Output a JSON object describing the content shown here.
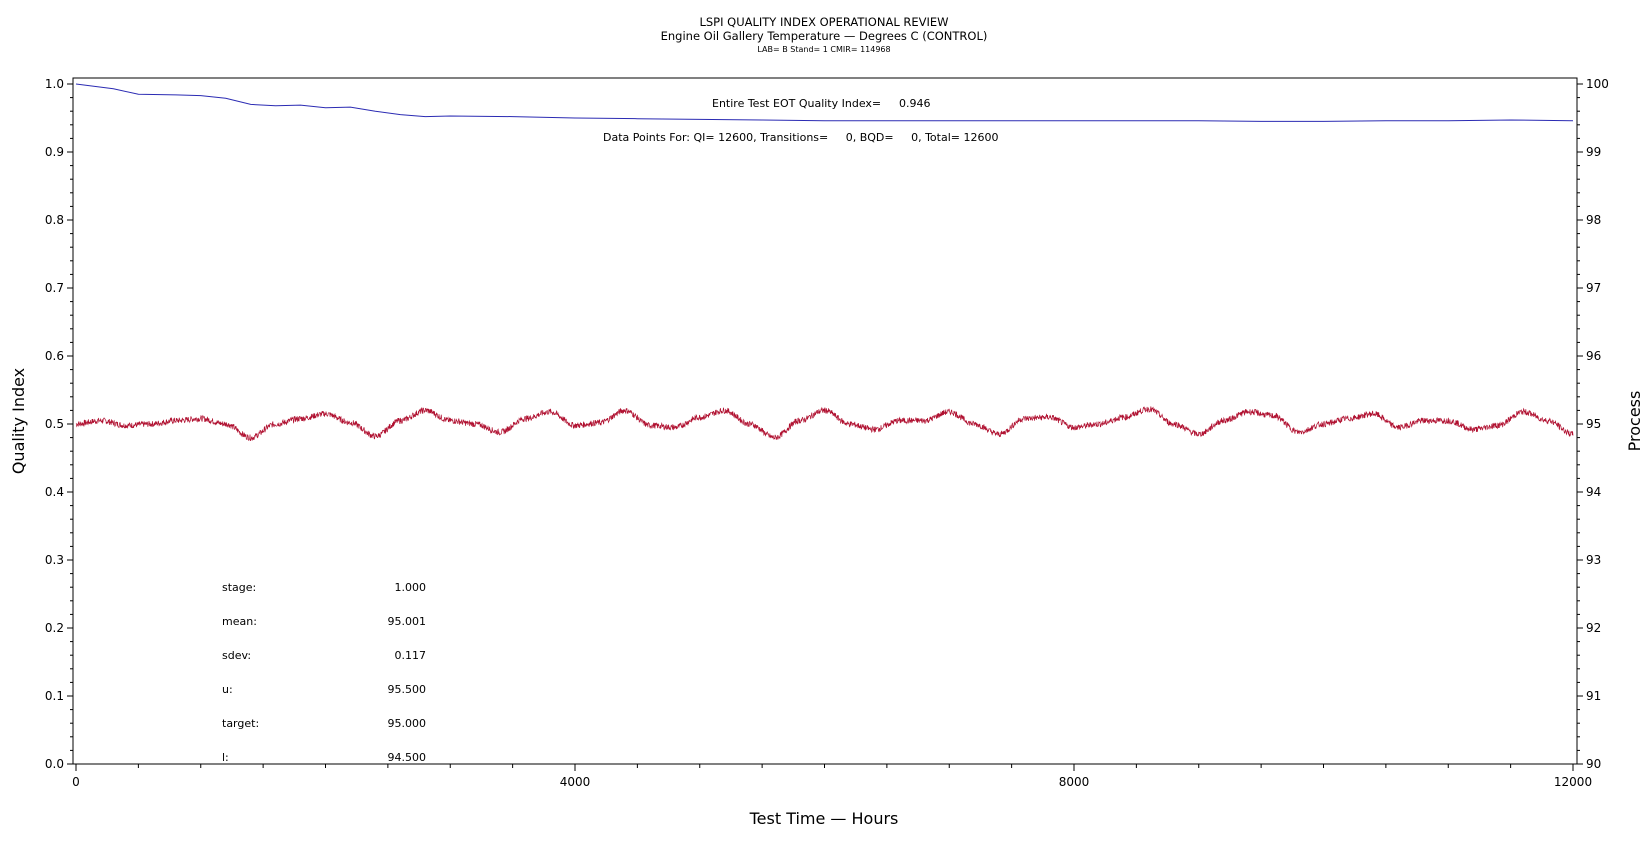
{
  "title_lines": [
    "LSPI QUALITY INDEX OPERATIONAL REVIEW",
    "Engine Oil Gallery Temperature — Degrees C (CONTROL)",
    "LAB= B Stand= 1 CMIR= 114968"
  ],
  "annotations": {
    "qi_label": "Entire Test EOT Quality Index=",
    "qi_value": "0.946",
    "points_text": "Data Points For: QI= 12600, Transitions=     0, BQD=     0, Total= 12600"
  },
  "stats": [
    {
      "label": "stage:",
      "value": "1.000"
    },
    {
      "label": "mean:",
      "value": "95.001"
    },
    {
      "label": "sdev:",
      "value": "0.117"
    },
    {
      "label": "u:",
      "value": "95.500"
    },
    {
      "label": "target:",
      "value": "95.000"
    },
    {
      "label": "l:",
      "value": "94.500"
    }
  ],
  "colors": {
    "quality_index": "#2b2bb3",
    "process": "#b01030",
    "frame": "#000000"
  },
  "chart_data": {
    "type": "line",
    "xlabel": "Test Time — Hours",
    "ylabel_left": "Quality Index",
    "ylabel_right": "Process",
    "xlim": [
      0,
      12000
    ],
    "x_ticks": [
      0,
      4000,
      8000,
      12000
    ],
    "ylim_left": [
      0.0,
      1.0
    ],
    "y_ticks_left": [
      "0.0",
      "0.1",
      "0.2",
      "0.3",
      "0.4",
      "0.5",
      "0.6",
      "0.7",
      "0.8",
      "0.9",
      "1.0"
    ],
    "ylim_right": [
      90,
      100
    ],
    "y_ticks_right": [
      "90",
      "91",
      "92",
      "93",
      "94",
      "95",
      "96",
      "97",
      "98",
      "99",
      "100"
    ],
    "grid": false,
    "series": [
      {
        "axis": "left",
        "x": [
          0,
          300,
          500,
          800,
          1000,
          1200,
          1400,
          1600,
          1800,
          2000,
          2200,
          2400,
          2600,
          2800,
          3000,
          3500,
          4000,
          4500,
          5000,
          5500,
          6000,
          6500,
          7000,
          7500,
          8000,
          8500,
          9000,
          9500,
          10000,
          10500,
          11000,
          11500,
          12000
        ],
        "values": [
          1.0,
          0.993,
          0.985,
          0.984,
          0.983,
          0.979,
          0.97,
          0.968,
          0.969,
          0.965,
          0.966,
          0.96,
          0.955,
          0.952,
          0.953,
          0.952,
          0.95,
          0.949,
          0.948,
          0.947,
          0.946,
          0.946,
          0.946,
          0.946,
          0.946,
          0.946,
          0.946,
          0.945,
          0.945,
          0.946,
          0.946,
          0.947,
          0.946
        ]
      },
      {
        "axis": "right",
        "x": [
          0,
          200,
          400,
          600,
          800,
          1000,
          1200,
          1400,
          1600,
          1800,
          2000,
          2200,
          2400,
          2600,
          2800,
          3000,
          3200,
          3400,
          3600,
          3800,
          4000,
          4200,
          4400,
          4600,
          4800,
          5000,
          5200,
          5400,
          5600,
          5800,
          6000,
          6200,
          6400,
          6600,
          6800,
          7000,
          7200,
          7400,
          7600,
          7800,
          8000,
          8200,
          8400,
          8600,
          8800,
          9000,
          9200,
          9400,
          9600,
          9800,
          10000,
          10200,
          10400,
          10600,
          10800,
          11000,
          11200,
          11400,
          11600,
          11800,
          12000
        ],
        "values": [
          95.0,
          95.05,
          94.98,
          95.0,
          95.05,
          95.08,
          95.0,
          94.8,
          95.0,
          95.08,
          95.15,
          95.02,
          94.82,
          95.05,
          95.2,
          95.05,
          95.0,
          94.88,
          95.08,
          95.18,
          94.98,
          95.02,
          95.2,
          94.98,
          94.95,
          95.1,
          95.2,
          95.0,
          94.8,
          95.05,
          95.2,
          95.0,
          94.92,
          95.05,
          95.05,
          95.18,
          95.0,
          94.85,
          95.08,
          95.1,
          94.95,
          95.0,
          95.1,
          95.22,
          95.0,
          94.85,
          95.05,
          95.18,
          95.12,
          94.88,
          95.0,
          95.08,
          95.15,
          94.95,
          95.05,
          95.05,
          94.92,
          94.98,
          95.18,
          95.05,
          94.85
        ]
      }
    ]
  }
}
